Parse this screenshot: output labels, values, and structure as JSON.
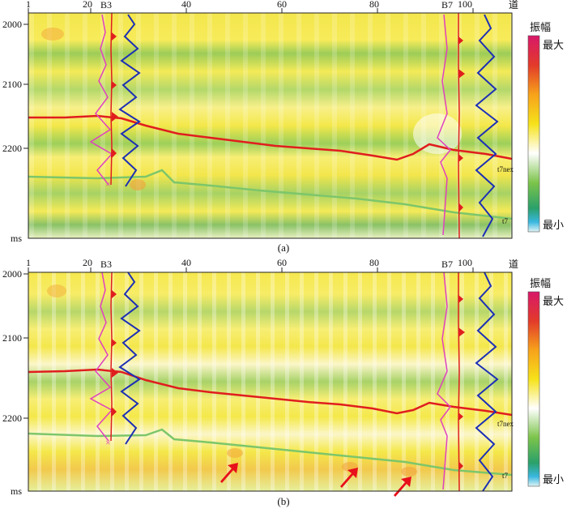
{
  "panels": [
    {
      "id": "a",
      "caption": "(a)",
      "trace_axis": {
        "ticks": [
          1,
          20,
          40,
          60,
          80,
          100
        ],
        "unit": "道"
      },
      "time_axis": {
        "ticks": [
          2000,
          2100,
          2200
        ],
        "unit": "ms"
      },
      "wells": [
        {
          "name": "B3",
          "trace": 22
        },
        {
          "name": "B7",
          "trace": 97
        }
      ],
      "horizon_labels": [
        "t7nex",
        "t7"
      ],
      "colorbar": {
        "title": "振幅",
        "max_label": "最大",
        "min_label": "最小"
      }
    },
    {
      "id": "b",
      "caption": "(b)",
      "trace_axis": {
        "ticks": [
          1,
          20,
          40,
          60,
          80,
          100
        ],
        "unit": "道"
      },
      "time_axis": {
        "ticks": [
          2000,
          2100,
          2200
        ],
        "unit": "ms"
      },
      "wells": [
        {
          "name": "B3",
          "trace": 22
        },
        {
          "name": "B7",
          "trace": 97
        }
      ],
      "horizon_labels": [
        "t7nex",
        "t7"
      ],
      "colorbar": {
        "title": "振幅",
        "max_label": "最大",
        "min_label": "最小"
      },
      "arrows": [
        {
          "trace": 55
        },
        {
          "trace": 77
        },
        {
          "trace": 88
        }
      ]
    }
  ],
  "colors": {
    "red_horizon": "#e01e1e",
    "green_horizon": "#7dc66a",
    "well_log_blue": "#1c2fb5",
    "well_log_pink": "#e040c0",
    "arrow": "#e8101a"
  }
}
